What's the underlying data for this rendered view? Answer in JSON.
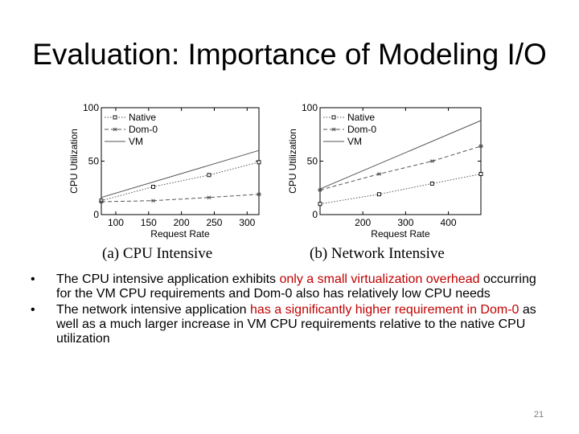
{
  "slide": {
    "title": "Evaluation: Importance of Modeling I/O",
    "page_number": "21"
  },
  "bullets": [
    {
      "segments": [
        {
          "text": "The CPU intensive application exhibits ",
          "highlight": false
        },
        {
          "text": "only a small virtualization overhead",
          "highlight": true
        },
        {
          "text": " occurring for the VM CPU requirements and Dom-0 also has relatively low CPU needs",
          "highlight": false
        }
      ]
    },
    {
      "segments": [
        {
          "text": "The network intensive application ",
          "highlight": false
        },
        {
          "text": "has a significantly higher requirement in Dom-0",
          "highlight": true
        },
        {
          "text": " as well as a much larger increase in VM CPU requirements relative to the native CPU utilization",
          "highlight": false
        }
      ]
    }
  ],
  "colors": {
    "highlight": "#c00000",
    "axis": "#000000",
    "series": "#555555"
  },
  "chart_data": [
    {
      "type": "line",
      "caption": "(a)  CPU Intensive",
      "xlabel": "Request Rate",
      "ylabel": "CPU Utilization",
      "xlim": [
        78,
        318
      ],
      "ylim": [
        0,
        100
      ],
      "xticks": [
        100,
        150,
        200,
        250,
        300
      ],
      "yticks": [
        0,
        50,
        100
      ],
      "legend_placement": "top-left",
      "grid": false,
      "series": [
        {
          "name": "Native",
          "style": "dotted",
          "marker": "square",
          "x": [
            78,
            157,
            242,
            318
          ],
          "y": [
            13,
            26,
            37,
            49
          ]
        },
        {
          "name": "Dom-0",
          "style": "dashed",
          "marker": "star",
          "x": [
            78,
            157,
            242,
            318
          ],
          "y": [
            12,
            13,
            16,
            19
          ]
        },
        {
          "name": "VM",
          "style": "solid",
          "marker": "none",
          "x": [
            78,
            318
          ],
          "y": [
            16,
            60
          ]
        }
      ]
    },
    {
      "type": "line",
      "caption": "(b)  Network Intensive",
      "xlabel": "Request Rate",
      "ylabel": "CPU Utilization",
      "xlim": [
        100,
        476
      ],
      "ylim": [
        0,
        100
      ],
      "xticks": [
        200,
        300,
        400
      ],
      "yticks": [
        0,
        50,
        100
      ],
      "legend_placement": "top-left",
      "grid": false,
      "series": [
        {
          "name": "Native",
          "style": "dotted",
          "marker": "square",
          "x": [
            100,
            238,
            362,
            476
          ],
          "y": [
            10,
            19,
            29,
            38
          ]
        },
        {
          "name": "Dom-0",
          "style": "dashed",
          "marker": "star",
          "x": [
            100,
            238,
            362,
            476
          ],
          "y": [
            23,
            38,
            50,
            64
          ]
        },
        {
          "name": "VM",
          "style": "solid",
          "marker": "none",
          "x": [
            100,
            476
          ],
          "y": [
            24,
            88
          ]
        }
      ]
    }
  ]
}
